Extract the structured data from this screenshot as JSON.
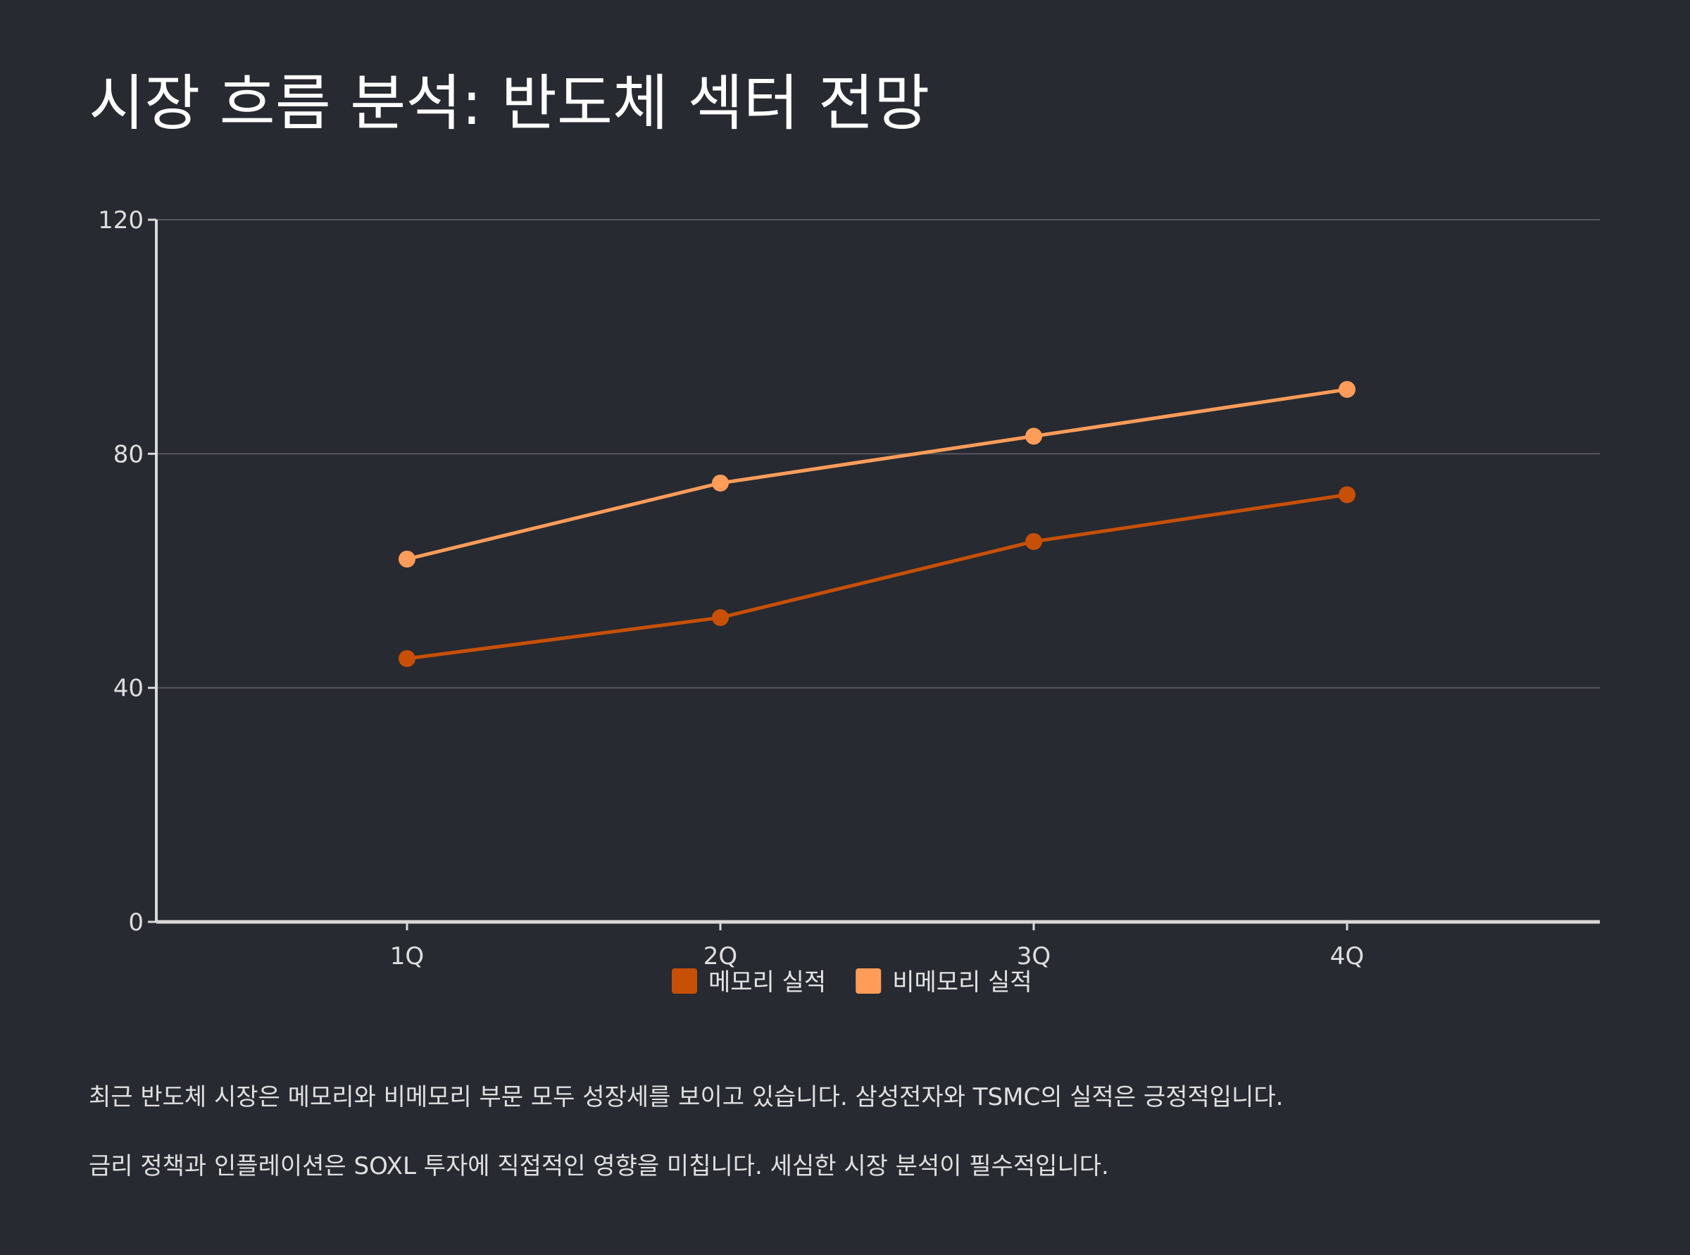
{
  "title": "시장 흐름 분석: 반도체 섹터 전망",
  "chart_data": {
    "type": "line",
    "categories": [
      "1Q",
      "2Q",
      "3Q",
      "4Q"
    ],
    "series": [
      {
        "name": "메모리 실적",
        "values": [
          45,
          52,
          65,
          73
        ],
        "color": "#c84f06"
      },
      {
        "name": "비메모리 실적",
        "values": [
          62,
          75,
          83,
          91
        ],
        "color": "#ff9c5a"
      }
    ],
    "ylim": [
      0,
      120
    ],
    "yticks": [
      0,
      40,
      80,
      120
    ],
    "grid": true,
    "legend": "bottom-center",
    "xlabel": "",
    "ylabel": ""
  },
  "paragraphs": [
    "최근 반도체 시장은 메모리와 비메모리 부문 모두 성장세를 보이고 있습니다. 삼성전자와 TSMC의 실적은 긍정적입니다.",
    "금리 정책과 인플레이션은 SOXL 투자에 직접적인 영향을 미칩니다. 세심한 시장 분석이 필수적입니다."
  ],
  "colors": {
    "background": "#282a32",
    "axis": "#d9d9d9",
    "grid": "#55575d"
  }
}
